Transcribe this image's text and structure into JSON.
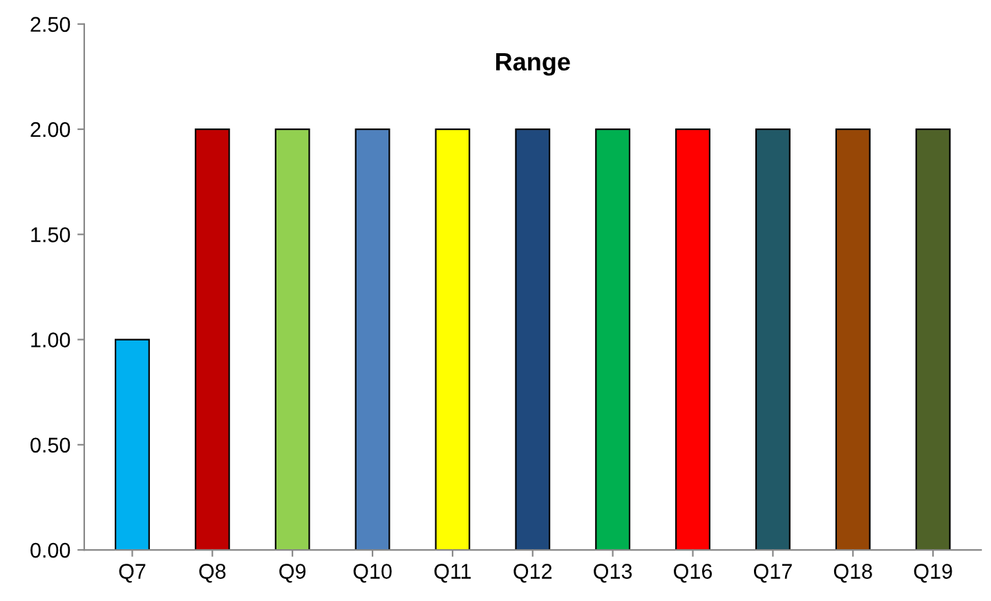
{
  "chart_data": {
    "type": "bar",
    "title": "Range",
    "categories": [
      "Q7",
      "Q8",
      "Q9",
      "Q10",
      "Q11",
      "Q12",
      "Q13",
      "Q16",
      "Q17",
      "Q18",
      "Q19"
    ],
    "values": [
      1,
      2,
      2,
      2,
      2,
      2,
      2,
      2,
      2,
      2,
      2
    ],
    "colors": [
      "#00b0f0",
      "#c00000",
      "#92d050",
      "#4f81bd",
      "#ffff00",
      "#1f497d",
      "#00b050",
      "#ff0000",
      "#215967",
      "#974706",
      "#4f6228"
    ],
    "ylim": [
      0,
      2.5
    ],
    "yticks": [
      {
        "value": 0,
        "label": "0.00"
      },
      {
        "value": 0.5,
        "label": "0.50"
      },
      {
        "value": 1,
        "label": "1.00"
      },
      {
        "value": 1.5,
        "label": "1.50"
      },
      {
        "value": 2,
        "label": "2.00"
      },
      {
        "value": 2.5,
        "label": "2.50"
      }
    ],
    "grid": false,
    "legend": false
  }
}
